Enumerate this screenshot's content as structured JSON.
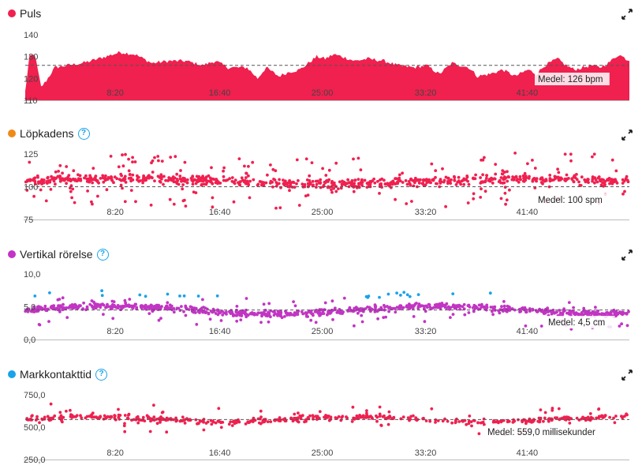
{
  "colors": {
    "pink": "#f0204f",
    "orange": "#ee8a1a",
    "magenta": "#c234c4",
    "blue": "#1aa3e8",
    "green": "#2aa833"
  },
  "x_ticks": [
    "8:20",
    "16:40",
    "25:00",
    "33:20",
    "41:40"
  ],
  "panels": [
    {
      "title": "Puls",
      "help": false,
      "avg_label": "Medel: 126 bpm"
    },
    {
      "title": "Löpkadens",
      "help": true,
      "avg_label": "Medel: 100 spm"
    },
    {
      "title": "Vertikal rörelse",
      "help": true,
      "avg_label": "Medel: 4,5 cm"
    },
    {
      "title": "Markkontakttid",
      "help": true,
      "avg_label": "Medel: 559,0 millisekunder"
    }
  ],
  "icons": {
    "help": "question-icon",
    "expand": "expand-icon"
  },
  "chart_data": [
    {
      "type": "area",
      "title": "Puls",
      "y_ticks": [
        "140",
        "130",
        "120",
        "110"
      ],
      "ylim": [
        110,
        140
      ],
      "xlim": [
        0,
        2860
      ],
      "average": 126,
      "points": [
        [
          0,
          114
        ],
        [
          20,
          130
        ],
        [
          45,
          131
        ],
        [
          75,
          116
        ],
        [
          100,
          119
        ],
        [
          140,
          125
        ],
        [
          200,
          126
        ],
        [
          270,
          127
        ],
        [
          310,
          128
        ],
        [
          380,
          130
        ],
        [
          450,
          132
        ],
        [
          520,
          131
        ],
        [
          600,
          127
        ],
        [
          680,
          128
        ],
        [
          760,
          128
        ],
        [
          840,
          126
        ],
        [
          900,
          128
        ],
        [
          960,
          125
        ],
        [
          1050,
          125
        ],
        [
          1100,
          120
        ],
        [
          1140,
          125
        ],
        [
          1200,
          121
        ],
        [
          1250,
          123
        ],
        [
          1300,
          124
        ],
        [
          1380,
          130
        ],
        [
          1420,
          129
        ],
        [
          1460,
          131
        ],
        [
          1500,
          130
        ],
        [
          1560,
          128
        ],
        [
          1620,
          129
        ],
        [
          1700,
          128
        ],
        [
          1760,
          126
        ],
        [
          1840,
          125
        ],
        [
          1900,
          126
        ],
        [
          1960,
          122
        ],
        [
          2020,
          127
        ],
        [
          2060,
          126
        ],
        [
          2100,
          125
        ],
        [
          2140,
          121
        ],
        [
          2200,
          122
        ],
        [
          2260,
          124
        ],
        [
          2320,
          121
        ],
        [
          2380,
          124
        ],
        [
          2420,
          122
        ],
        [
          2460,
          126
        ],
        [
          2520,
          129
        ],
        [
          2560,
          126
        ],
        [
          2600,
          124
        ],
        [
          2640,
          125
        ],
        [
          2680,
          126
        ],
        [
          2720,
          125
        ],
        [
          2760,
          127
        ],
        [
          2810,
          131
        ],
        [
          2860,
          128
        ]
      ]
    },
    {
      "type": "scatter",
      "title": "Löpkadens",
      "y_ticks": [
        "125",
        "100",
        "75"
      ],
      "ylim": [
        75,
        125
      ],
      "xlim": [
        0,
        2860
      ],
      "average": 100
    },
    {
      "type": "scatter",
      "title": "Vertikal rörelse",
      "y_ticks": [
        "10,0",
        "5,0",
        "0,0"
      ],
      "ylim": [
        0,
        10
      ],
      "xlim": [
        0,
        2860
      ],
      "average": 4.5
    },
    {
      "type": "scatter",
      "title": "Markkontakttid",
      "y_ticks": [
        "750,0",
        "500,0",
        "250,0"
      ],
      "ylim": [
        250,
        750
      ],
      "xlim": [
        0,
        2860
      ],
      "average": 559
    }
  ]
}
